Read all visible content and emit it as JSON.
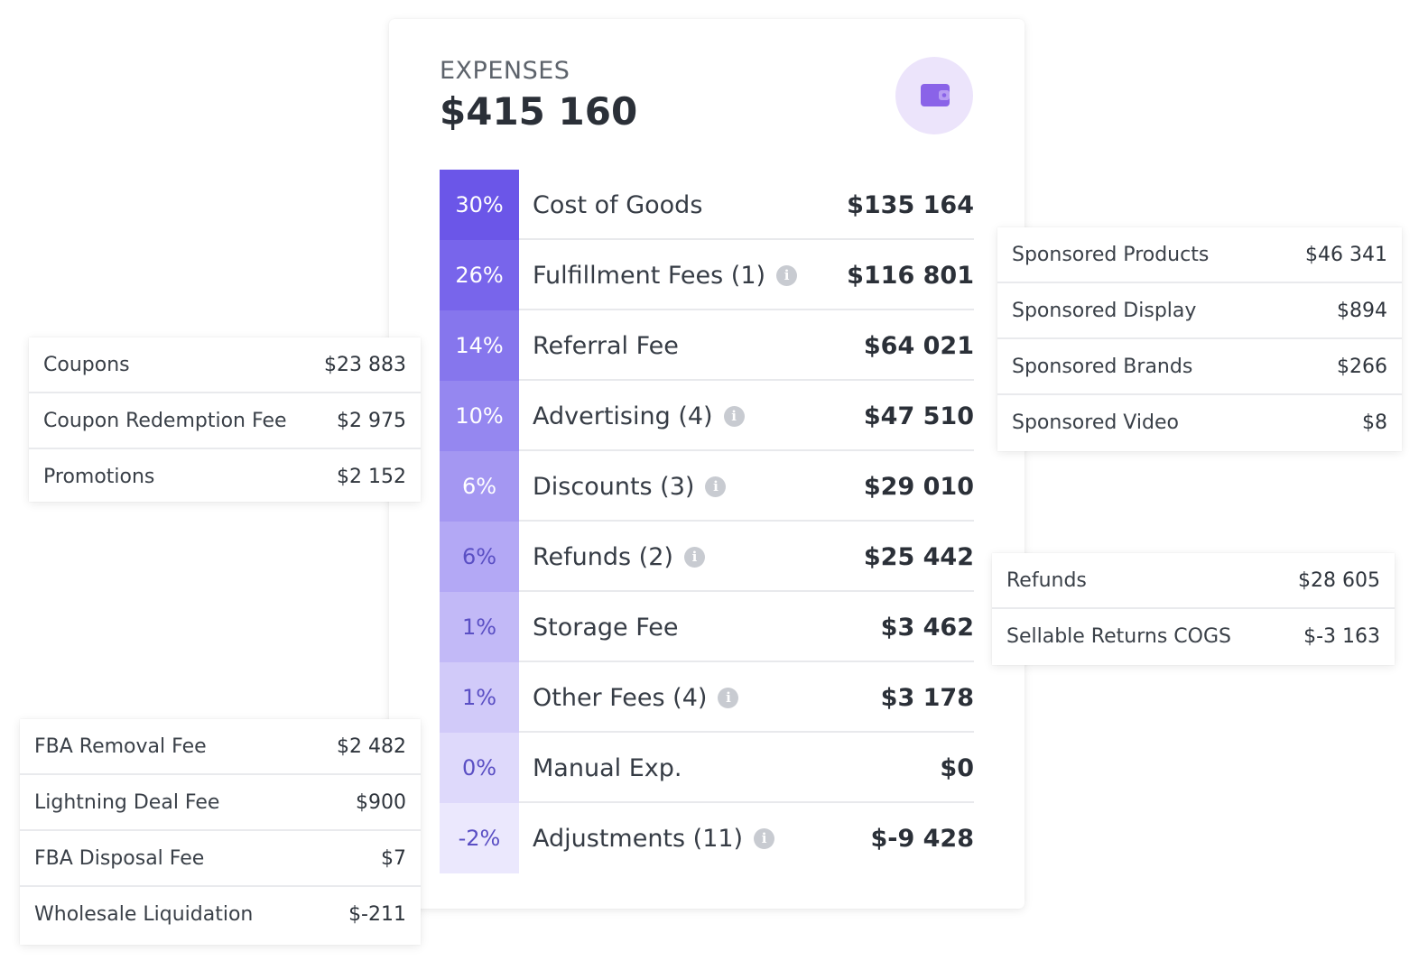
{
  "expenses": {
    "title": "EXPENSES",
    "total": "$415 160",
    "icon": "wallet-icon",
    "rows": [
      {
        "pct": "30%",
        "label": "Cost of Goods",
        "value": "$135 164",
        "info": false,
        "bg": "#6b56e8",
        "fg": "#ffffff"
      },
      {
        "pct": "26%",
        "label": "Fulfillment Fees (1)",
        "value": "$116 801",
        "info": true,
        "bg": "#7865eb",
        "fg": "#ffffff"
      },
      {
        "pct": "14%",
        "label": "Referral Fee",
        "value": "$64 021",
        "info": false,
        "bg": "#8676ed",
        "fg": "#ffffff"
      },
      {
        "pct": "10%",
        "label": "Advertising (4)",
        "value": "$47 510",
        "info": true,
        "bg": "#9587f0",
        "fg": "#ffffff"
      },
      {
        "pct": "6%",
        "label": "Discounts (3)",
        "value": "$29 010",
        "info": true,
        "bg": "#a497f2",
        "fg": "#ffffff"
      },
      {
        "pct": "6%",
        "label": "Refunds (2)",
        "value": "$25 442",
        "info": true,
        "bg": "#b3a8f5",
        "fg": "#5a4fc4"
      },
      {
        "pct": "1%",
        "label": "Storage Fee",
        "value": "$3 462",
        "info": false,
        "bg": "#c2b9f7",
        "fg": "#5a4fc4"
      },
      {
        "pct": "1%",
        "label": "Other Fees (4)",
        "value": "$3 178",
        "info": true,
        "bg": "#d1caf9",
        "fg": "#5a4fc4"
      },
      {
        "pct": "0%",
        "label": "Manual Exp.",
        "value": "$0",
        "info": false,
        "bg": "#ded9fb",
        "fg": "#5a4fc4"
      },
      {
        "pct": "-2%",
        "label": "Adjustments (11)",
        "value": "$-9 428",
        "info": true,
        "bg": "#ebe8fd",
        "fg": "#5a4fc4"
      }
    ]
  },
  "left_top": [
    {
      "label": "Coupons",
      "value": "$23 883"
    },
    {
      "label": "Coupon Redemption Fee",
      "value": "$2 975"
    },
    {
      "label": "Promotions",
      "value": "$2 152"
    }
  ],
  "left_bottom": [
    {
      "label": "FBA Removal Fee",
      "value": "$2 482"
    },
    {
      "label": "Lightning Deal Fee",
      "value": "$900"
    },
    {
      "label": "FBA Disposal Fee",
      "value": "$7"
    },
    {
      "label": "Wholesale Liquidation",
      "value": "$-211"
    }
  ],
  "right_top": [
    {
      "label": "Sponsored Products",
      "value": "$46 341"
    },
    {
      "label": "Sponsored Display",
      "value": "$894"
    },
    {
      "label": "Sponsored Brands",
      "value": "$266"
    },
    {
      "label": "Sponsored Video",
      "value": "$8"
    }
  ],
  "right_mid": [
    {
      "label": "Refunds",
      "value": "$28 605"
    },
    {
      "label": "Sellable Returns COGS",
      "value": "$-3 163"
    }
  ]
}
